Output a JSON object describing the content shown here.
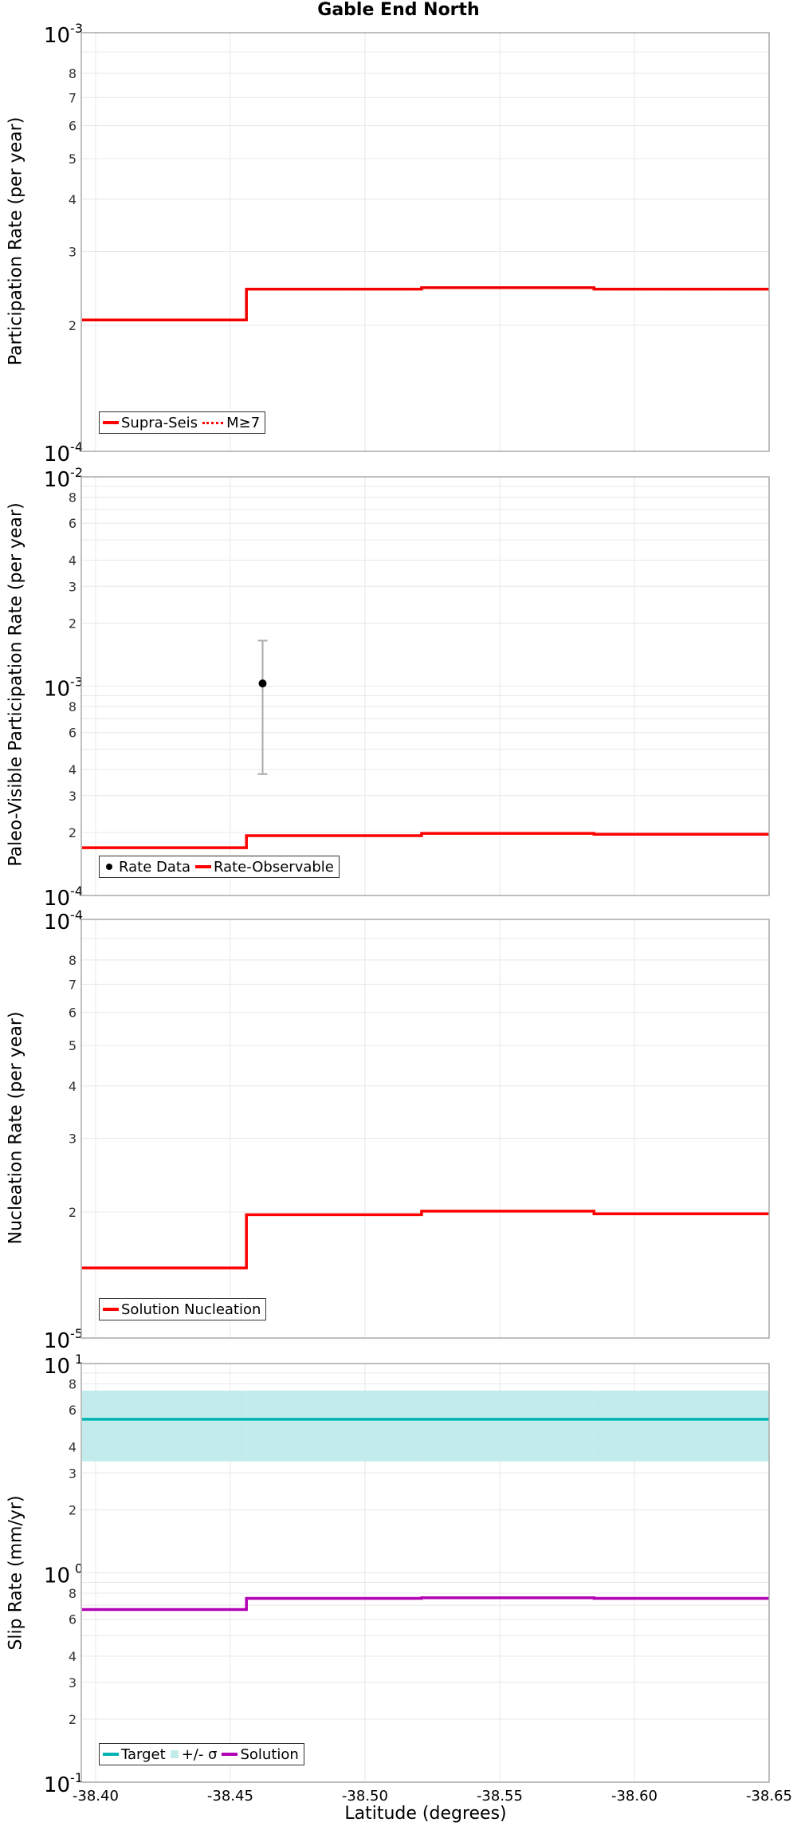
{
  "title": "Gable End North",
  "xlabel": "Latitude (degrees)",
  "x_ticks": [
    "-38.40",
    "-38.45",
    "-38.50",
    "-38.55",
    "-38.60",
    "-38.65"
  ],
  "colors": {
    "red": "#ff0000",
    "teal": "#00b3b3",
    "band": "#c2ecec",
    "magenta": "#b300b3",
    "grid": "#e8e8e8",
    "frame": "#aaaaaa"
  },
  "chart_data": [
    {
      "type": "line",
      "title": "Gable End North",
      "ylabel": "Participation Rate (per year)",
      "xlabel": "Latitude (degrees)",
      "yscale": "log",
      "ylim": [
        0.0001,
        0.001
      ],
      "xlim": [
        -38.395,
        -38.65
      ],
      "y_tick_labels": [
        "10^-4",
        "2",
        "3",
        "4",
        "5",
        "6",
        "7",
        "8",
        "10^-3"
      ],
      "legend": [
        "Supra-Seis",
        "M≥7"
      ],
      "legend_position": "lower left",
      "x": [
        -38.395,
        -38.456,
        -38.521,
        -38.585,
        -38.65
      ],
      "series": [
        {
          "name": "Supra-Seis",
          "style": "solid",
          "color": "#ff0000",
          "values": [
            0.000206,
            0.000244,
            0.000246,
            0.000244
          ]
        },
        {
          "name": "M≥7",
          "style": "dotted",
          "color": "#ff0000",
          "values": [
            0.000206,
            0.000244,
            0.000246,
            0.000244
          ]
        }
      ]
    },
    {
      "type": "line",
      "ylabel": "Paleo-Visible Participation Rate (per year)",
      "yscale": "log",
      "ylim": [
        0.0001,
        0.01
      ],
      "y_tick_labels": [
        "10^-4",
        "2",
        "3",
        "4",
        "6",
        "8",
        "10^-3",
        "2",
        "3",
        "4",
        "6",
        "8",
        "10^-2"
      ],
      "legend": [
        "Rate Data",
        "Rate-Observable"
      ],
      "legend_position": "lower left",
      "x": [
        -38.395,
        -38.456,
        -38.521,
        -38.585,
        -38.65
      ],
      "series": [
        {
          "name": "Rate-Observable",
          "style": "solid",
          "color": "#ff0000",
          "values": [
            0.000169,
            0.000193,
            0.000198,
            0.000196
          ]
        }
      ],
      "points": [
        {
          "name": "Rate Data",
          "x": -38.462,
          "y": 0.00103,
          "y_low": 0.00038,
          "y_high": 0.00165
        }
      ]
    },
    {
      "type": "line",
      "ylabel": "Nucleation Rate (per year)",
      "yscale": "log",
      "ylim": [
        1e-05,
        0.0001
      ],
      "y_tick_labels": [
        "10^-5",
        "2",
        "3",
        "4",
        "5",
        "6",
        "7",
        "8",
        "10^-4"
      ],
      "legend": [
        "Solution Nucleation"
      ],
      "legend_position": "lower left",
      "x": [
        -38.395,
        -38.456,
        -38.521,
        -38.585,
        -38.65
      ],
      "series": [
        {
          "name": "Solution Nucleation",
          "style": "solid",
          "color": "#ff0000",
          "values": [
            1.47e-05,
            1.97e-05,
            2.01e-05,
            1.98e-05
          ]
        }
      ]
    },
    {
      "type": "line",
      "ylabel": "Slip Rate (mm/yr)",
      "xlabel": "Latitude (degrees)",
      "yscale": "log",
      "ylim": [
        0.1,
        10
      ],
      "y_tick_labels": [
        "10^-1",
        "2",
        "3",
        "4",
        "6",
        "8",
        "10^0",
        "2",
        "3",
        "4",
        "6",
        "8",
        "10^1"
      ],
      "x_tick_labels": [
        "-38.40",
        "-38.45",
        "-38.50",
        "-38.55",
        "-38.60",
        "-38.65"
      ],
      "legend": [
        "Target",
        "+/- σ",
        "Solution"
      ],
      "legend_position": "lower left",
      "x": [
        -38.395,
        -38.456,
        -38.521,
        -38.585,
        -38.65
      ],
      "series": [
        {
          "name": "Target",
          "style": "solid",
          "color": "#00b3b3",
          "values": [
            5.42,
            5.42,
            5.42,
            5.42
          ]
        },
        {
          "name": "+/- σ",
          "style": "band",
          "color": "#c2ecec",
          "lower": [
            3.41,
            3.41,
            3.41,
            3.41
          ],
          "upper": [
            7.43,
            7.43,
            7.43,
            7.43
          ]
        },
        {
          "name": "Solution",
          "style": "solid",
          "color": "#b300b3",
          "values": [
            0.668,
            0.755,
            0.76,
            0.755
          ]
        }
      ]
    }
  ],
  "legends": {
    "p1": {
      "a": "Supra-Seis",
      "b": "M≥7"
    },
    "p2": {
      "a": "Rate Data",
      "b": "Rate-Observable"
    },
    "p3": {
      "a": "Solution Nucleation"
    },
    "p4": {
      "a": "Target",
      "b": "+/- σ",
      "c": "Solution"
    }
  },
  "ylabels": {
    "p1": "Participation Rate (per year)",
    "p2": "Paleo-Visible Participation Rate (per year)",
    "p3": "Nucleation Rate (per year)",
    "p4": "Slip Rate (mm/yr)"
  }
}
